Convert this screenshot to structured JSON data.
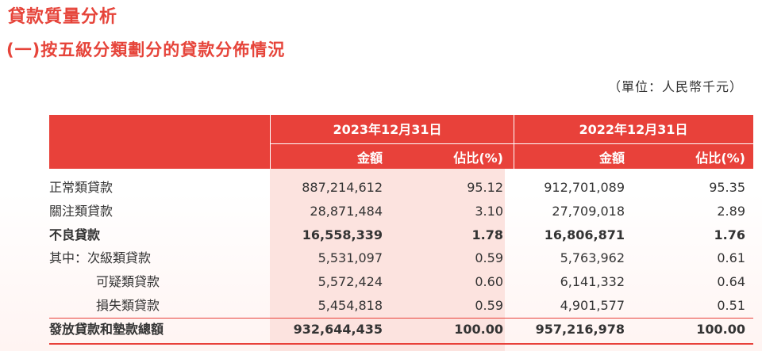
{
  "section_title": "貸款質量分析",
  "sub_title": "(一)按五級分類劃分的貸款分佈情況",
  "unit_note": "（單位：人民幣千元）",
  "table": {
    "period_headers": [
      "2023年12月31日",
      "2022年12月31日"
    ],
    "amount_label": "金額",
    "ratio_label": "佔比(%)",
    "rows": [
      {
        "label": "正常類貸款",
        "a2023": "887,214,612",
        "r2023": "95.12",
        "a2022": "912,701,089",
        "r2022": "95.35"
      },
      {
        "label": "關注類貸款",
        "a2023": "28,871,484",
        "r2023": "3.10",
        "a2022": "27,709,018",
        "r2022": "2.89"
      },
      {
        "label": "不良貸款",
        "a2023": "16,558,339",
        "r2023": "1.78",
        "a2022": "16,806,871",
        "r2022": "1.76"
      },
      {
        "label": "其中：次級類貸款",
        "a2023": "5,531,097",
        "r2023": "0.59",
        "a2022": "5,763,962",
        "r2022": "0.61"
      },
      {
        "label": "可疑類貸款",
        "a2023": "5,572,424",
        "r2023": "0.60",
        "a2022": "6,141,332",
        "r2022": "0.64"
      },
      {
        "label": "損失類貸款",
        "a2023": "5,454,818",
        "r2023": "0.59",
        "a2022": "4,901,577",
        "r2022": "0.51"
      },
      {
        "label": "發放貸款和墊款總額",
        "a2023": "932,644,435",
        "r2023": "100.00",
        "a2022": "957,216,978",
        "r2022": "100.00"
      }
    ]
  },
  "colors": {
    "accent": "#e8413a",
    "title": "#e6443a",
    "column_shade": "#fce3df"
  }
}
